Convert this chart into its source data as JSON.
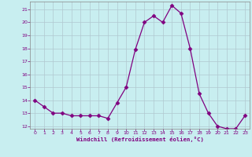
{
  "x": [
    0,
    1,
    2,
    3,
    4,
    5,
    6,
    7,
    8,
    9,
    10,
    11,
    12,
    13,
    14,
    15,
    16,
    17,
    18,
    19,
    20,
    21,
    22,
    23
  ],
  "y": [
    14,
    13.5,
    13,
    13,
    12.8,
    12.8,
    12.8,
    12.8,
    12.6,
    13.8,
    15,
    17.9,
    20,
    20.5,
    20,
    21.3,
    20.7,
    18,
    14.5,
    13,
    12,
    11.8,
    11.8,
    12.8
  ],
  "line_color": "#800080",
  "marker": "D",
  "marker_size": 2.5,
  "bg_color": "#c8eef0",
  "grid_color": "#b0c8d0",
  "xlabel": "Windchill (Refroidissement éolien,°C)",
  "xlabel_color": "#800080",
  "tick_color": "#800080",
  "ylim": [
    11.8,
    21.6
  ],
  "yticks": [
    12,
    13,
    14,
    15,
    16,
    17,
    18,
    19,
    20,
    21
  ],
  "xlim": [
    -0.5,
    23.5
  ],
  "xticks": [
    0,
    1,
    2,
    3,
    4,
    5,
    6,
    7,
    8,
    9,
    10,
    11,
    12,
    13,
    14,
    15,
    16,
    17,
    18,
    19,
    20,
    21,
    22,
    23
  ]
}
